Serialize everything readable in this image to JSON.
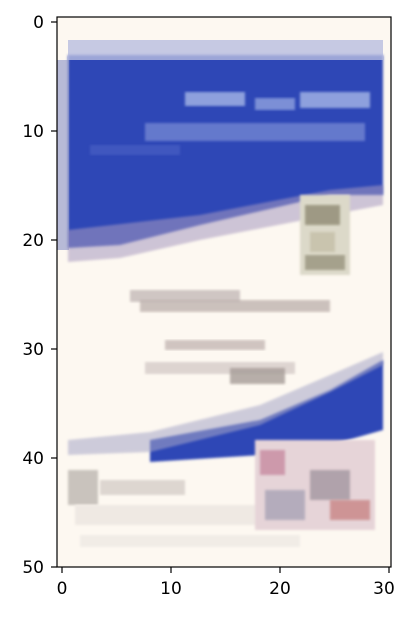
{
  "image": {
    "description_free": true,
    "colors": {
      "background": "#fdf8f1",
      "band_blue": "#2f47b6",
      "band_blue_light": "#8ea0dd",
      "text_gray": "#b7aaa7",
      "accent_pink": "#c98fa4",
      "olive": "#8f8a73"
    }
  },
  "axes": {
    "x_ticks": [
      "0",
      "10",
      "20",
      "30"
    ],
    "y_ticks": [
      "0",
      "10",
      "20",
      "30",
      "40",
      "50"
    ]
  }
}
